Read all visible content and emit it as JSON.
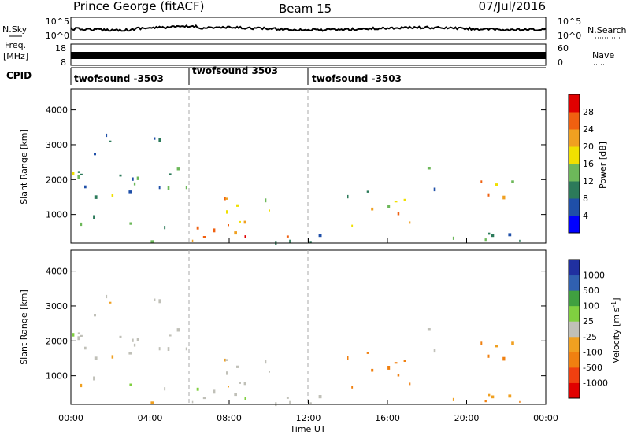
{
  "header": {
    "station": "Prince George (fitACF)",
    "beam": "Beam 15",
    "date": "07/Jul/2016"
  },
  "chart_data": [
    {
      "type": "line",
      "name": "noise-panel",
      "left_label": "N.Sky",
      "right_label": "N.Search",
      "left_ticks": [
        "10^5",
        "10^0"
      ],
      "right_ticks": [
        "10^5",
        "10^0"
      ],
      "scale": "log"
    },
    {
      "type": "line",
      "name": "freq-nave-panel",
      "left_label_top": "Freq.",
      "left_label_unit": "[MHz]",
      "right_label": "Nave",
      "left_ticks": [
        18,
        8
      ],
      "right_ticks": [
        60,
        0
      ]
    },
    {
      "type": "table",
      "name": "cpid",
      "label": "CPID",
      "segments": [
        {
          "start_h": 0,
          "end_h": 6,
          "text": "twofsound -3503"
        },
        {
          "start_h": 6,
          "end_h": 12,
          "text": "twofsound 3503"
        },
        {
          "start_h": 12,
          "end_h": 24,
          "text": "twofsound -3503"
        }
      ]
    },
    {
      "type": "heatmap",
      "name": "power",
      "ylabel": "Slant Range [km]",
      "yticks": [
        1000,
        2000,
        3000,
        4000
      ],
      "ylim": [
        180,
        4600
      ],
      "colorbar_label": "Power [dB]",
      "colorbar_ticks": [
        4,
        8,
        12,
        16,
        20,
        24,
        28
      ],
      "colors": [
        "#0000ff",
        "#1f4fa8",
        "#2c7a5a",
        "#6db85a",
        "#f0e000",
        "#f0a020",
        "#f06010",
        "#e00000"
      ]
    },
    {
      "type": "heatmap",
      "name": "velocity",
      "ylabel": "Slant Range [km]",
      "yticks": [
        1000,
        2000,
        3000,
        4000
      ],
      "ylim": [
        180,
        4600
      ],
      "colorbar_label": "Velocity [m s",
      "colorbar_label_sup": "-1",
      "colorbar_label_end": "]",
      "colorbar_ticks": [
        1000,
        500,
        100,
        25,
        -25,
        -100,
        -500,
        -1000
      ],
      "colors": [
        "#2030a0",
        "#3060b0",
        "#40a040",
        "#80d040",
        "#c0c0b8",
        "#f0a020",
        "#f08010",
        "#f04010",
        "#e00000"
      ]
    }
  ],
  "time_axis": {
    "xlabel": "Time UT",
    "ticks": [
      "00:00",
      "04:00",
      "08:00",
      "12:00",
      "16:00",
      "20:00",
      "00:00"
    ]
  }
}
